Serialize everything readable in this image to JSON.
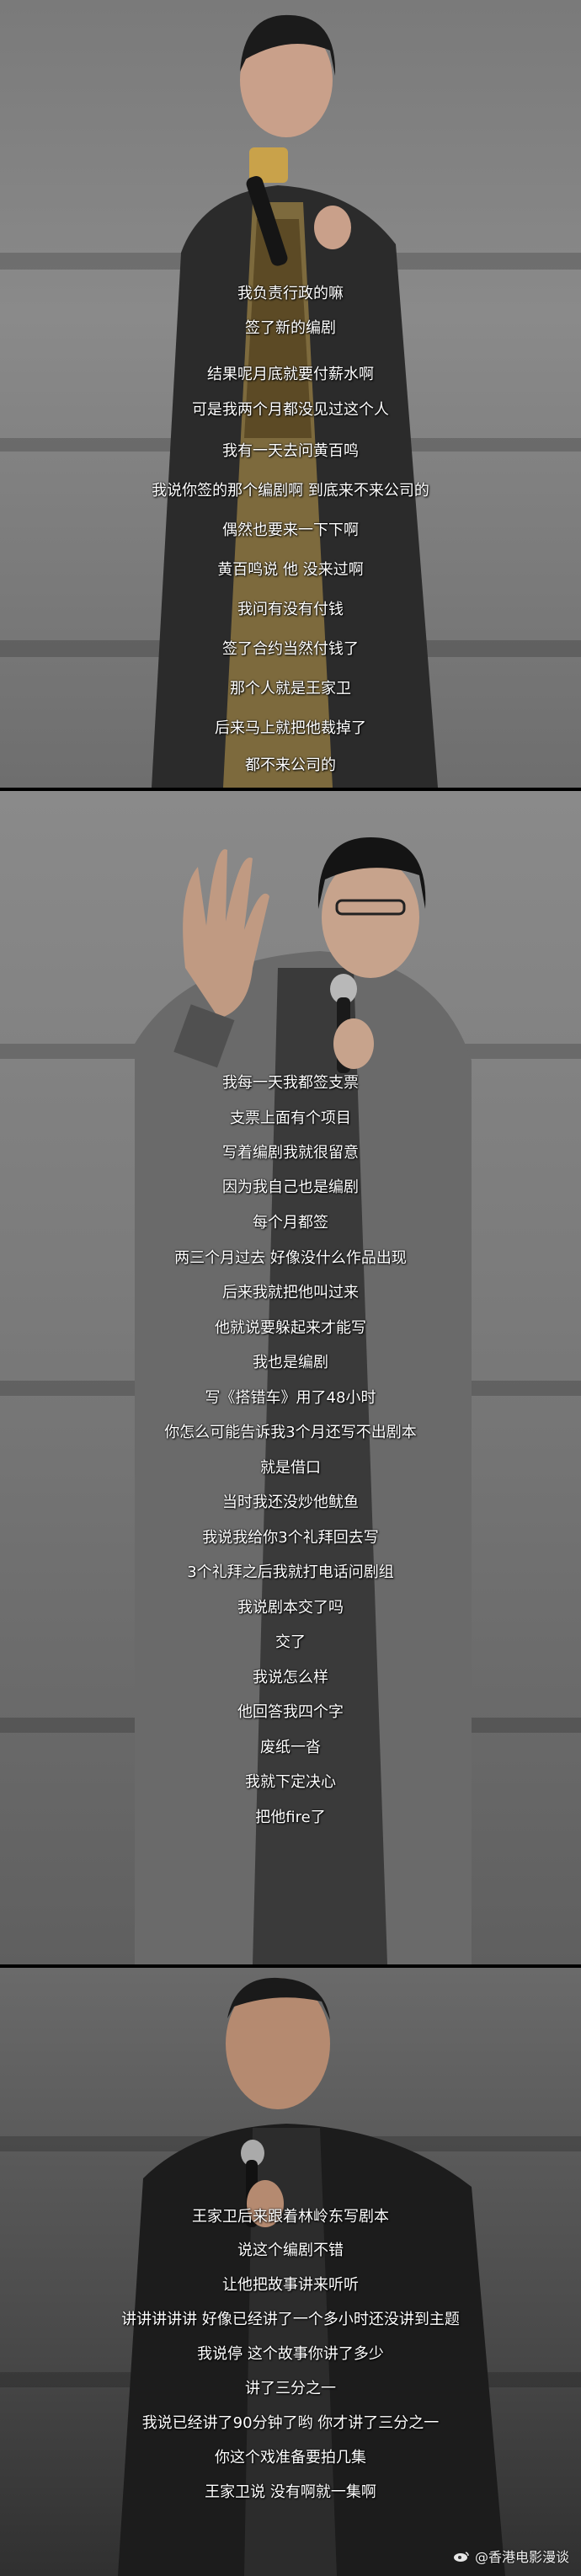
{
  "panel1": {
    "lines": [
      "我负责行政的嘛",
      "签了新的编剧",
      "结果呢月底就要付薪水啊",
      "可是我两个月都没见过这个人",
      "我有一天去问黄百鸣",
      "我说你签的那个编剧啊 到底来不来公司的",
      "偶然也要来一下下啊",
      "黄百鸣说 他 没来过啊",
      "我问有没有付钱",
      "签了合约当然付钱了",
      "那个人就是王家卫",
      "后来马上就把他裁掉了",
      "都不来公司的"
    ]
  },
  "panel2": {
    "lines": [
      "我每一天我都签支票",
      "支票上面有个项目",
      "写着编剧我就很留意",
      "因为我自己也是编剧",
      "每个月都签",
      "两三个月过去 好像没什么作品出现",
      "后来我就把他叫过来",
      "他就说要躲起来才能写",
      "我也是编剧",
      "写《搭错车》用了48小时",
      "你怎么可能告诉我3个月还写不出剧本",
      "就是借口",
      "当时我还没炒他鱿鱼",
      "我说我给你3个礼拜回去写",
      "3个礼拜之后我就打电话问剧组",
      "我说剧本交了吗",
      "交了",
      "我说怎么样",
      "他回答我四个字",
      "废纸一沓",
      "我就下定决心",
      "把他fire了"
    ]
  },
  "panel3": {
    "lines": [
      "王家卫后来跟着林岭东写剧本",
      "说这个编剧不错",
      "让他把故事讲来听听",
      "讲讲讲讲讲 好像已经讲了一个多小时还没讲到主题",
      "我说停 这个故事你讲了多少",
      "讲了三分之一",
      "我说已经讲了90分钟了哟 你才讲了三分之一",
      "你这个戏准备要拍几集",
      "王家卫说 没有啊就一集啊"
    ]
  },
  "watermark": {
    "text": "@香港电影漫谈"
  }
}
